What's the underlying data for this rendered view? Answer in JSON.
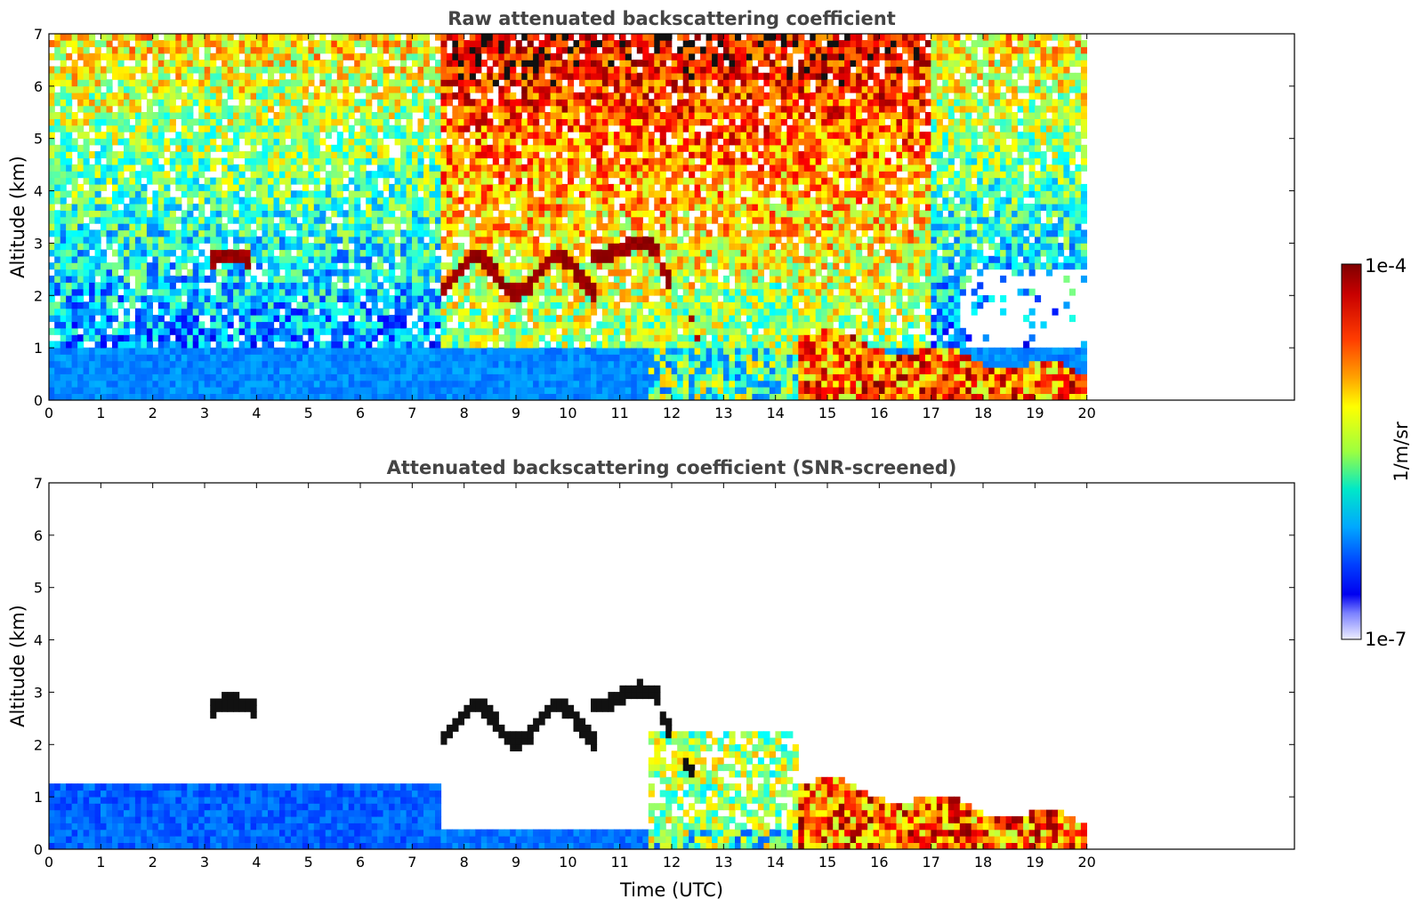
{
  "chart_data": [
    {
      "type": "heatmap",
      "title": "Raw attenuated backscattering coefficient",
      "ylabel": "Altitude (km)",
      "xlabel": "",
      "xlim": [
        0,
        24
      ],
      "ylim": [
        0,
        7
      ],
      "x_ticks": [
        "0",
        "1",
        "2",
        "3",
        "4",
        "5",
        "6",
        "7",
        "8",
        "9",
        "10",
        "11",
        "12",
        "13",
        "14",
        "15",
        "16",
        "17",
        "18",
        "19",
        "20"
      ],
      "y_ticks": [
        "0",
        "1",
        "2",
        "3",
        "4",
        "5",
        "6",
        "7"
      ],
      "data_end_time": 20,
      "features": [
        {
          "kind": "aerosol_boundary_layer",
          "x": [
            0,
            7.5
          ],
          "y": [
            0,
            1.0
          ]
        },
        {
          "kind": "cloud_layer",
          "x": [
            3.1,
            3.9
          ],
          "y": [
            2.55,
            2.8
          ]
        },
        {
          "kind": "cloud_layer",
          "x": [
            7.6,
            10.5
          ],
          "y": [
            1.9,
            2.9
          ]
        },
        {
          "kind": "cloud_layer",
          "x": [
            10.5,
            11.8
          ],
          "y": [
            2.7,
            3.05
          ]
        },
        {
          "kind": "descending_cloud",
          "x": [
            11.8,
            12.6
          ],
          "y": [
            1.0,
            2.6
          ]
        },
        {
          "kind": "low_cloud",
          "x": [
            14.5,
            20
          ],
          "y": [
            0.1,
            1.3
          ]
        }
      ]
    },
    {
      "type": "heatmap",
      "title": "Attenuated backscattering coefficient (SNR-screened)",
      "ylabel": "Altitude (km)",
      "xlabel": "Time (UTC)",
      "xlim": [
        0,
        24
      ],
      "ylim": [
        0,
        7
      ],
      "x_ticks": [
        "0",
        "1",
        "2",
        "3",
        "4",
        "5",
        "6",
        "7",
        "8",
        "9",
        "10",
        "11",
        "12",
        "13",
        "14",
        "15",
        "16",
        "17",
        "18",
        "19",
        "20"
      ],
      "y_ticks": [
        "0",
        "1",
        "2",
        "3",
        "4",
        "5",
        "6",
        "7"
      ],
      "data_end_time": 20,
      "features": [
        {
          "kind": "aerosol_boundary_layer",
          "x": [
            0,
            7.5
          ],
          "y": [
            0,
            1.3
          ]
        },
        {
          "kind": "cloud_layer",
          "x": [
            3.1,
            4.0
          ],
          "y": [
            2.55,
            2.85
          ]
        },
        {
          "kind": "cloud_layer",
          "x": [
            7.6,
            10.5
          ],
          "y": [
            1.9,
            2.9
          ]
        },
        {
          "kind": "cloud_layer",
          "x": [
            10.5,
            11.8
          ],
          "y": [
            2.7,
            3.1
          ]
        },
        {
          "kind": "descending_cloud",
          "x": [
            11.8,
            12.6
          ],
          "y": [
            1.0,
            2.6
          ]
        },
        {
          "kind": "low_cloud",
          "x": [
            14.5,
            20
          ],
          "y": [
            0.1,
            1.3
          ]
        }
      ]
    }
  ],
  "colorbar": {
    "label": "1/m/sr",
    "max_label": "1e-4",
    "min_label": "1e-7",
    "colors": [
      "#7f0000",
      "#d70000",
      "#ff5a00",
      "#ffb000",
      "#ffff00",
      "#9aff3a",
      "#00e0c0",
      "#00a8ff",
      "#0040ff",
      "#0000ee",
      "#b0b8ff",
      "#eaeaff"
    ]
  }
}
